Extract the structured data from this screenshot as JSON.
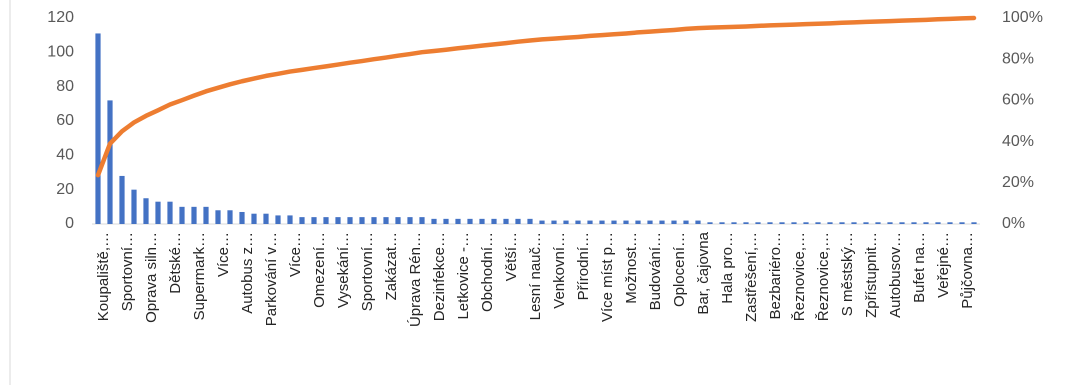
{
  "chart_data": {
    "type": "pareto",
    "categories": [
      "Koupaliště,…",
      null,
      "Sportovní…",
      null,
      "Oprava siln…",
      null,
      "Dětské…",
      null,
      "Supermark…",
      null,
      "Více…",
      null,
      "Autobus z…",
      null,
      "Parkování v…",
      null,
      "Více…",
      null,
      "Omezení…",
      null,
      "Vysekání…",
      null,
      "Sportovní…",
      null,
      "Zakázat…",
      null,
      "Úprava Rén…",
      null,
      "Dezinfekce…",
      null,
      "Letkovice -…",
      null,
      "Obchodní…",
      null,
      "Větší…",
      null,
      "Lesní nauč…",
      null,
      "Venkovní…",
      null,
      "Přírodní…",
      null,
      "Více míst p…",
      null,
      "Možnost…",
      null,
      "Budování…",
      null,
      "Oplocení…",
      null,
      "Bar, čajovna",
      null,
      "Hala pro…",
      null,
      "Zastřešení,…",
      null,
      "Bezbariéro…",
      null,
      "Řeznovice,…",
      null,
      "Řeznovice,…",
      null,
      "S městský…",
      null,
      "Zpřístupnit…",
      null,
      "Autobusov…",
      null,
      "Bufet na…",
      null,
      "Veřejné…",
      null,
      "Půjčovna…",
      null
    ],
    "series": [
      {
        "type": "bar",
        "color": "#4472c4",
        "values": [
          111,
          72,
          28,
          20,
          15,
          13,
          13,
          10,
          10,
          10,
          8,
          8,
          7,
          6,
          6,
          5,
          5,
          4,
          4,
          4,
          4,
          4,
          4,
          4,
          4,
          4,
          4,
          4,
          3,
          3,
          3,
          3,
          3,
          3,
          3,
          3,
          3,
          2,
          2,
          2,
          2,
          2,
          2,
          2,
          2,
          2,
          2,
          2,
          2,
          2,
          2,
          1,
          1,
          1,
          1,
          1,
          1,
          1,
          1,
          1,
          1,
          1,
          1,
          1,
          1,
          1,
          1,
          1,
          1,
          1,
          1,
          1,
          1,
          1
        ]
      },
      {
        "type": "line",
        "axis": "y2",
        "color": "#ed7d31",
        "values": [
          23.7,
          39.0,
          45.0,
          49.3,
          52.5,
          55.2,
          58.0,
          60.1,
          62.3,
          64.4,
          66.1,
          67.8,
          69.3,
          70.6,
          71.9,
          72.9,
          74.0,
          74.8,
          75.7,
          76.5,
          77.4,
          78.3,
          79.1,
          80.0,
          80.8,
          81.7,
          82.5,
          83.4,
          84.0,
          84.6,
          85.3,
          85.9,
          86.6,
          87.2,
          87.8,
          88.5,
          89.1,
          89.6,
          90.0,
          90.4,
          90.8,
          91.3,
          91.7,
          92.1,
          92.5,
          93.0,
          93.4,
          93.8,
          94.2,
          94.7,
          95.1,
          95.3,
          95.5,
          95.7,
          95.9,
          96.2,
          96.4,
          96.6,
          96.8,
          97.0,
          97.2,
          97.4,
          97.7,
          97.9,
          98.1,
          98.3,
          98.5,
          98.7,
          98.9,
          99.1,
          99.4,
          99.6,
          99.8,
          100
        ]
      }
    ],
    "ylim": [
      0,
      120
    ],
    "yticks": [
      0,
      20,
      40,
      60,
      80,
      100,
      120
    ],
    "y2lim": [
      0,
      100
    ],
    "y2ticks": [
      {
        "value": 0,
        "label": "0%"
      },
      {
        "value": 20,
        "label": "20%"
      },
      {
        "value": 40,
        "label": "40%"
      },
      {
        "value": 60,
        "label": "60%"
      },
      {
        "value": 80,
        "label": "80%"
      },
      {
        "value": 100,
        "label": "100%"
      }
    ],
    "grid": false
  }
}
